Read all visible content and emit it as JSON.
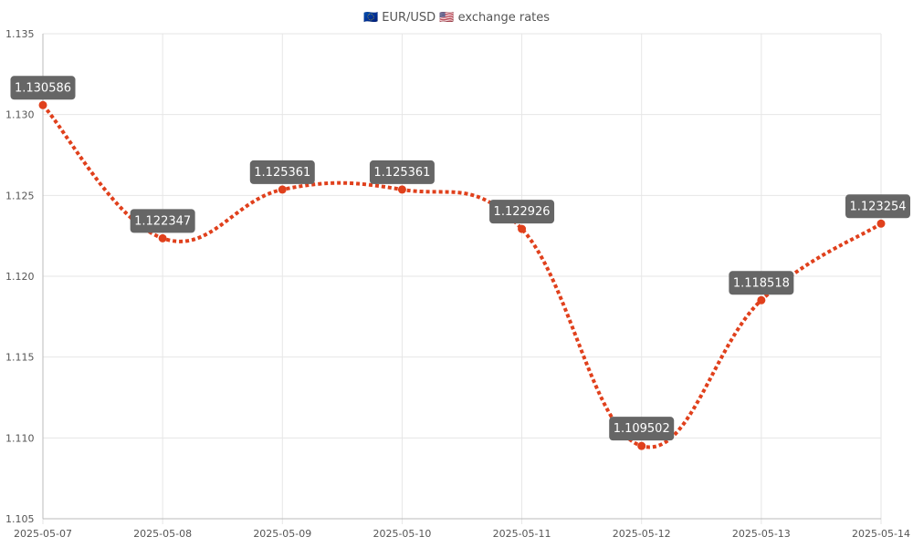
{
  "chart_data": {
    "type": "line",
    "title": "🇪🇺 EUR/USD 🇺🇸 exchange rates",
    "x": [
      "2025-05-07",
      "2025-05-08",
      "2025-05-09",
      "2025-05-10",
      "2025-05-11",
      "2025-05-12",
      "2025-05-13",
      "2025-05-14"
    ],
    "series": [
      {
        "values": [
          1.130586,
          1.122347,
          1.125361,
          1.125361,
          1.122926,
          1.109502,
          1.118518,
          1.123254
        ],
        "labels": [
          "1.130586",
          "1.122347",
          "1.125361",
          "1.125361",
          "1.122926",
          "1.109502",
          "1.118518",
          "1.123254"
        ],
        "color": "#e0401c"
      }
    ],
    "ylim": [
      1.105,
      1.135
    ],
    "yticks": [
      "1.105",
      "1.110",
      "1.115",
      "1.120",
      "1.125",
      "1.130",
      "1.135"
    ],
    "ytick_values": [
      1.105,
      1.11,
      1.115,
      1.12,
      1.125,
      1.13,
      1.135
    ],
    "grid": true,
    "line_style": "dotted-smooth",
    "label_bg": "#666666",
    "grid_color": "#e6e6e6",
    "axis_color": "#bbbbbb"
  }
}
